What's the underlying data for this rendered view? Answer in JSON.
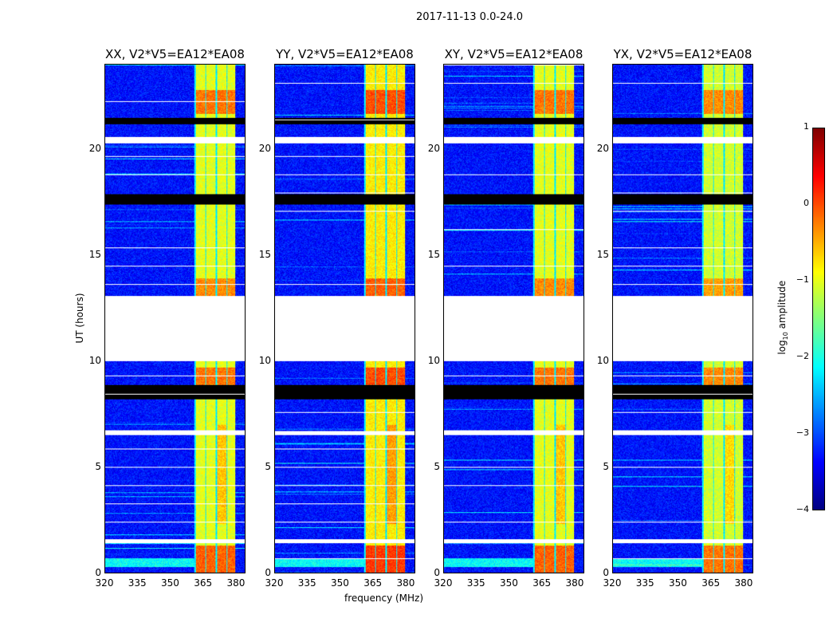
{
  "suptitle": "2017-11-13 0.0-24.0",
  "chart_data": {
    "type": "heatmap",
    "xlabel": "frequency (MHz)",
    "ylabel": "UT (hours)",
    "xlim": [
      320,
      384.4
    ],
    "ylim": [
      0,
      24
    ],
    "xticks": [
      "320",
      "335",
      "350",
      "365",
      "380"
    ],
    "xtick_values": [
      320,
      335,
      350,
      365,
      380
    ],
    "yticks": [
      "0",
      "5",
      "10",
      "15",
      "20"
    ],
    "ytick_values": [
      0,
      5,
      10,
      15,
      20
    ],
    "colormap": "jet",
    "colorbar": {
      "label_main": "log",
      "label_sub": "10",
      "label_rest": " amplitude",
      "range": [
        -4,
        1
      ],
      "ticks": [
        "−4",
        "−3",
        "−2",
        "−1",
        "0",
        "1"
      ],
      "tick_values": [
        -4,
        -3,
        -2,
        -1,
        0,
        1
      ]
    },
    "background_level": -3.3,
    "bright_band_mhz": [
      361,
      380
    ],
    "flagged_white_hours": [
      [
        10.0,
        13.1
      ],
      [
        20.3,
        20.6
      ],
      [
        1.4,
        1.6
      ],
      [
        6.5,
        6.7
      ]
    ],
    "flagged_black_hours": [
      [
        8.2,
        8.9
      ],
      [
        17.4,
        17.9
      ],
      [
        21.2,
        21.5
      ]
    ],
    "panels": [
      {
        "title": "XX, V2*V5=EA12*EA08",
        "band_level": -1.0
      },
      {
        "title": "YY, V2*V5=EA12*EA08",
        "band_level": -0.8
      },
      {
        "title": "XY, V2*V5=EA12*EA08",
        "band_level": -1.0
      },
      {
        "title": "YX, V2*V5=EA12*EA08",
        "band_level": -1.1
      }
    ]
  }
}
